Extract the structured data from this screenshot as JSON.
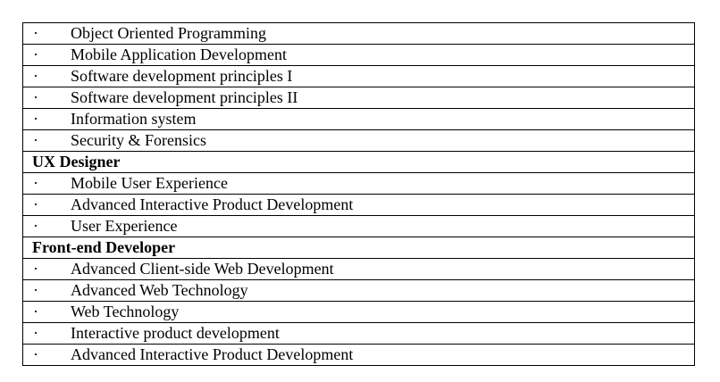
{
  "bullet_glyph": "·",
  "groups": [
    {
      "heading": "",
      "items": [
        "Object Oriented Programming",
        "Mobile Application Development",
        "Software development principles I",
        "Software development principles II",
        "Information system",
        "Security & Forensics"
      ]
    },
    {
      "heading": "UX Designer",
      "items": [
        "Mobile User Experience",
        "Advanced Interactive Product Development",
        "User Experience"
      ]
    },
    {
      "heading": "Front-end Developer",
      "items": [
        "Advanced Client-side Web Development",
        "Advanced Web Technology",
        "Web Technology",
        "Interactive product development",
        "Advanced Interactive Product Development"
      ]
    }
  ]
}
